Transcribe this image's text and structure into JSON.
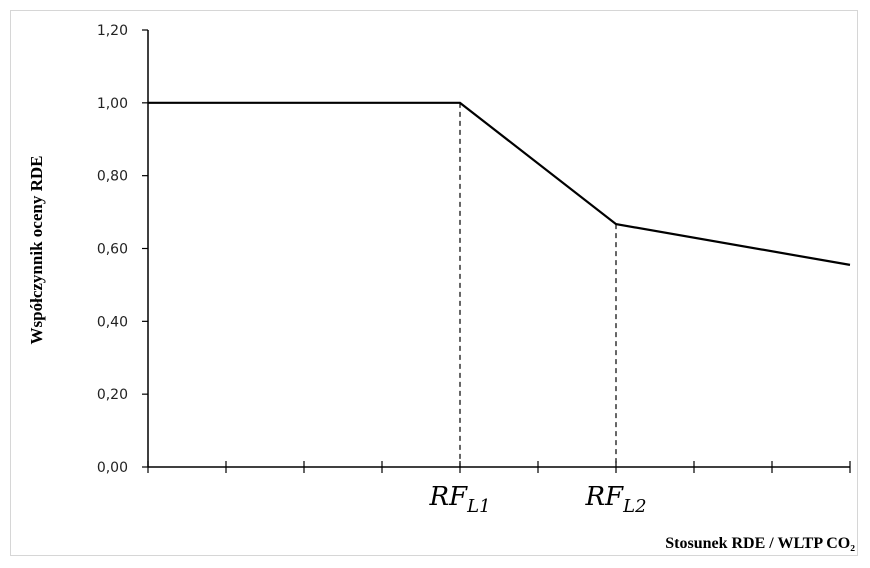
{
  "chart_data": {
    "type": "line",
    "title": "",
    "xlabel": "Stosunek RDE / WLTP CO₂",
    "ylabel": "Współczynnik oceny RDE",
    "ylim": [
      0,
      1.2
    ],
    "yticks": [
      "0,00",
      "0,20",
      "0,40",
      "0,60",
      "0,80",
      "1,00",
      "1,20"
    ],
    "xlim": [
      0,
      9
    ],
    "x_minor_ticks": 9,
    "grid": false,
    "series": [
      {
        "x": [
          0,
          4,
          6,
          9
        ],
        "y": [
          1.0,
          1.0,
          0.667,
          0.555
        ]
      }
    ],
    "markers": [
      {
        "label_main": "RF",
        "label_sub": "L1",
        "x": 4,
        "y": 1.0
      },
      {
        "label_main": "RF",
        "label_sub": "L2",
        "x": 6,
        "y": 0.667
      }
    ]
  }
}
